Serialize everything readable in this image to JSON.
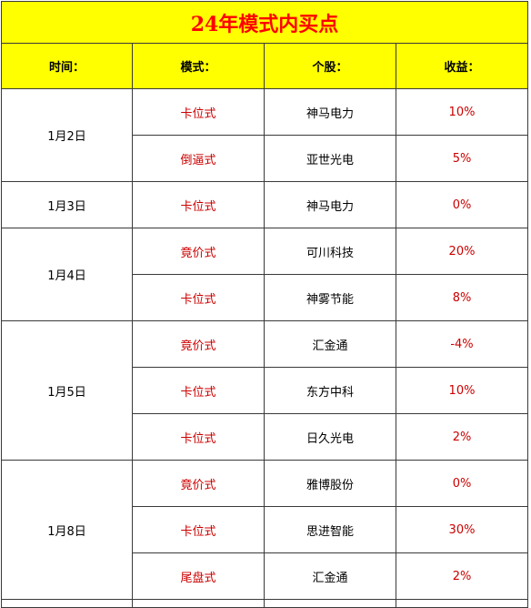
{
  "title": "24年模式内买点",
  "headers": {
    "date": "时间：",
    "mode": "模式：",
    "stock": "个股：",
    "return": "收益："
  },
  "groups": [
    {
      "date": "1月2日",
      "rows": [
        {
          "mode": "卡位式",
          "stock": "神马电力",
          "return": "10%"
        },
        {
          "mode": "倒逼式",
          "stock": "亚世光电",
          "return": "5%"
        }
      ]
    },
    {
      "date": "1月3日",
      "rows": [
        {
          "mode": "卡位式",
          "stock": "神马电力",
          "return": "0%"
        }
      ]
    },
    {
      "date": "1月4日",
      "rows": [
        {
          "mode": "竟价式",
          "stock": "可川科技",
          "return": "20%"
        },
        {
          "mode": "卡位式",
          "stock": "神雾节能",
          "return": "8%"
        }
      ]
    },
    {
      "date": "1月5日",
      "rows": [
        {
          "mode": "竟价式",
          "stock": "汇金通",
          "return": "-4%"
        },
        {
          "mode": "卡位式",
          "stock": "东方中科",
          "return": "10%"
        },
        {
          "mode": "卡位式",
          "stock": "日久光电",
          "return": "2%"
        }
      ]
    },
    {
      "date": "1月8日",
      "rows": [
        {
          "mode": "竟价式",
          "stock": "雅博股份",
          "return": "0%"
        },
        {
          "mode": "卡位式",
          "stock": "思进智能",
          "return": "30%"
        },
        {
          "mode": "尾盘式",
          "stock": "汇金通",
          "return": "2%"
        }
      ]
    }
  ]
}
